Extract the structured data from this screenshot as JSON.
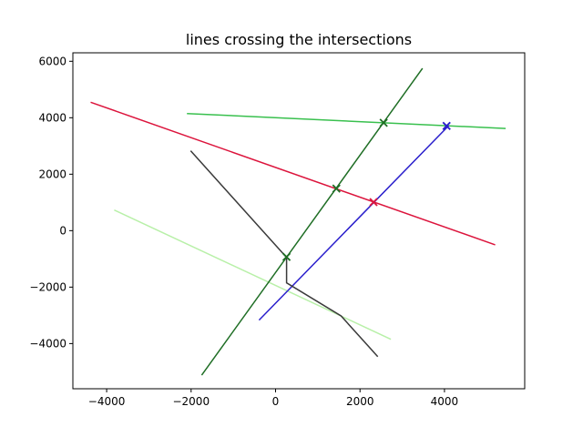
{
  "chart_data": {
    "type": "line",
    "title": "lines crossing the intersections",
    "xlabel": "",
    "ylabel": "",
    "xlim": [
      -4800,
      5900
    ],
    "ylim": [
      -5600,
      6300
    ],
    "grid": false,
    "x_ticks": [
      -4000,
      -2000,
      0,
      2000,
      4000
    ],
    "x_tick_labels": [
      "−4000",
      "−2000",
      "0",
      "2000",
      "4000"
    ],
    "y_ticks": [
      -4000,
      -2000,
      0,
      2000,
      4000,
      6000
    ],
    "y_tick_labels": [
      "−4000",
      "−2000",
      "0",
      "2000",
      "4000",
      "6000"
    ],
    "series": [
      {
        "name": "green-line",
        "color": "#39c04e",
        "points": [
          [
            -2100,
            4150
          ],
          [
            5450,
            3620
          ]
        ]
      },
      {
        "name": "crimson-line",
        "color": "#dc143c",
        "points": [
          [
            -4380,
            4550
          ],
          [
            5200,
            -500
          ]
        ]
      },
      {
        "name": "light-green-line",
        "color": "#b8f0a8",
        "points": [
          [
            -3820,
            730
          ],
          [
            2730,
            -3850
          ]
        ]
      },
      {
        "name": "dark-green-line",
        "color": "#1f6e25",
        "points": [
          [
            -1750,
            -5120
          ],
          [
            3480,
            5750
          ]
        ]
      },
      {
        "name": "blue-line",
        "color": "#2a1fcc",
        "points": [
          [
            -390,
            -3170
          ],
          [
            4100,
            3720
          ]
        ]
      },
      {
        "name": "dark-gray-polyline",
        "color": "#3a3a3a",
        "points": [
          [
            -2010,
            2830
          ],
          [
            260,
            -950
          ],
          [
            260,
            -1850
          ],
          [
            1550,
            -3020
          ],
          [
            2420,
            -4460
          ]
        ]
      }
    ],
    "intersections": [
      {
        "x": 2560,
        "y": 3820,
        "color": "#1f6e25"
      },
      {
        "x": 4050,
        "y": 3710,
        "color": "#2a1fcc"
      },
      {
        "x": 1440,
        "y": 1490,
        "color": "#1f6e25"
      },
      {
        "x": 2320,
        "y": 1010,
        "color": "#dc143c"
      },
      {
        "x": 260,
        "y": -930,
        "color": "#1f6e25"
      }
    ]
  }
}
